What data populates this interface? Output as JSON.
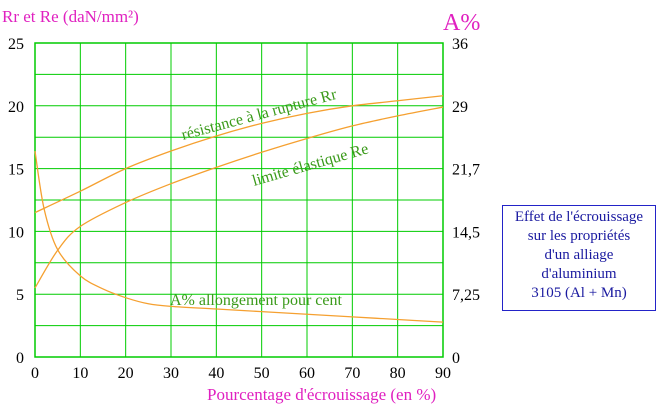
{
  "chart_data": {
    "type": "line",
    "title": "",
    "left_axis": {
      "title": "Rr et Re (daN/mm²)",
      "range": [
        0,
        25
      ],
      "ticks": [
        "0",
        "5",
        "10",
        "15",
        "20",
        "25"
      ]
    },
    "right_axis": {
      "title": "A%",
      "range": [
        0,
        36
      ],
      "ticks": [
        "0",
        "7,25",
        "14,5",
        "21,7",
        "29",
        "36"
      ]
    },
    "x_axis": {
      "title": "Pourcentage d'écrouissage (en %)",
      "range": [
        0,
        90
      ],
      "ticks": [
        "0",
        "10",
        "20",
        "30",
        "40",
        "50",
        "60",
        "70",
        "80",
        "90"
      ]
    },
    "grid": true,
    "series": [
      {
        "name": "résistance à la rupture Rr",
        "axis": "left",
        "x": [
          0,
          10,
          20,
          30,
          40,
          50,
          60,
          70,
          80,
          90
        ],
        "y": [
          11.5,
          13.2,
          15.0,
          16.4,
          17.6,
          18.6,
          19.4,
          20.0,
          20.4,
          20.8
        ]
      },
      {
        "name": "limite élastique Re",
        "axis": "left",
        "x": [
          0,
          5,
          10,
          20,
          30,
          40,
          50,
          60,
          70,
          80,
          90
        ],
        "y": [
          5.5,
          8.5,
          10.4,
          12.3,
          13.8,
          15.1,
          16.3,
          17.4,
          18.4,
          19.2,
          19.9
        ]
      },
      {
        "name": "A% allongement pour cent",
        "axis": "right",
        "x": [
          0,
          2,
          5,
          10,
          15,
          20,
          25,
          30,
          40,
          50,
          60,
          70,
          80,
          90
        ],
        "y": [
          23.6,
          17.0,
          12.3,
          9.3,
          7.8,
          6.8,
          6.1,
          5.8,
          5.5,
          5.2,
          4.9,
          4.6,
          4.3,
          4.0
        ]
      }
    ],
    "label_text": {
      "rr": "résistance à la rupture Rr",
      "re": "limite élastique Re",
      "a": "A% allongement pour cent"
    },
    "colors": {
      "grid": "#00cc00",
      "curves": "#f5a030",
      "curve_labels": "#3a9a1a",
      "axis_titles": "#e020c0",
      "ticks": "#000000"
    }
  },
  "note": {
    "lines": [
      "Effet de l'écrouissage",
      "sur les propriétés",
      "d'un alliage",
      "d'aluminium",
      "3105 (Al + Mn)"
    ]
  }
}
